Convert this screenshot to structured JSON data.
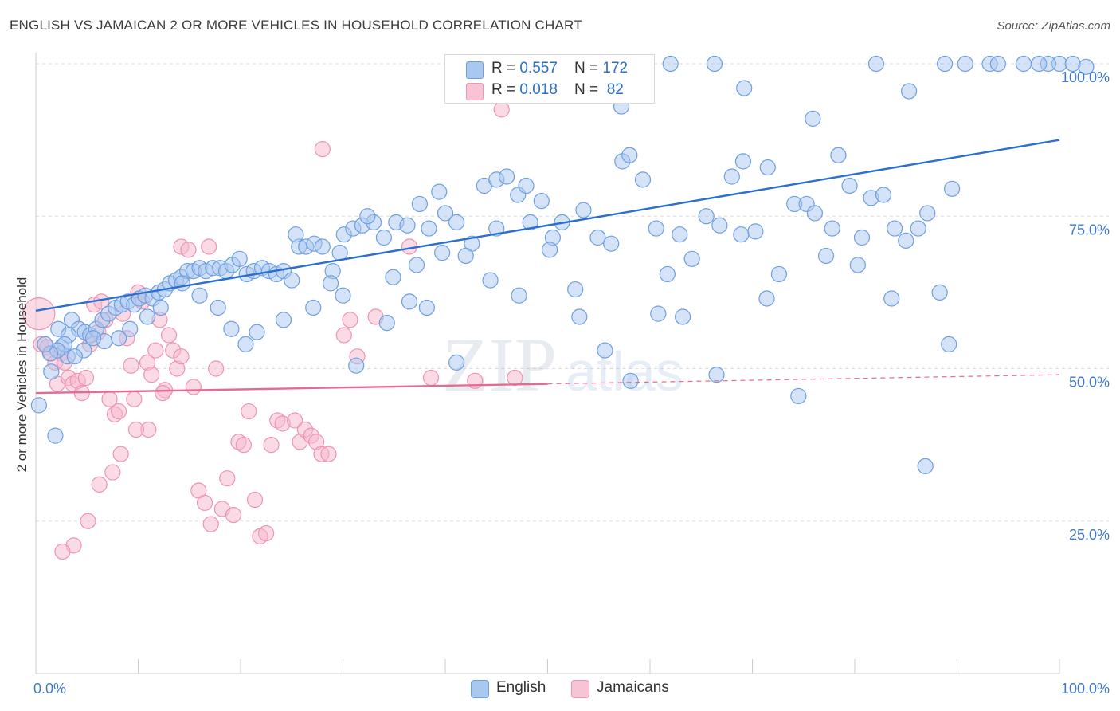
{
  "title": "ENGLISH VS JAMAICAN 2 OR MORE VEHICLES IN HOUSEHOLD CORRELATION CHART",
  "source": "Source: ZipAtlas.com",
  "watermark": {
    "zip": "ZIP",
    "atlas": "atlas"
  },
  "legend": {
    "english": {
      "r_label": "R = ",
      "r_value": "0.557",
      "n_label": "N = ",
      "n_value": "172"
    },
    "jamaicans": {
      "r_label": "R = ",
      "r_value": "0.018",
      "n_label": "N = ",
      "n_value": " 82"
    }
  },
  "bottom_legend": {
    "english": "English",
    "jamaicans": "Jamaicans"
  },
  "colors": {
    "english_fill": "#a9c8f0",
    "english_stroke": "#6f9fe0",
    "english_line": "#2b6fce",
    "jamaican_fill": "#f6b8cc",
    "jamaican_stroke": "#ee93b2",
    "jamaican_line": "#e56b95",
    "tick_label": "#3f78c8",
    "grid": "#dddddd"
  },
  "chart_data": {
    "type": "scatter",
    "title": "ENGLISH VS JAMAICAN 2 OR MORE VEHICLES IN HOUSEHOLD CORRELATION CHART",
    "xlabel": "",
    "ylabel": "2 or more Vehicles in Household",
    "xlim": [
      0,
      100
    ],
    "ylim": [
      0,
      104
    ],
    "x_tick_labels": [
      {
        "value": 0,
        "label": "0.0%"
      },
      {
        "value": 100,
        "label": "100.0%"
      }
    ],
    "y_tick_labels": [
      {
        "value": 25,
        "label": "25.0%"
      },
      {
        "value": 50,
        "label": "50.0%"
      },
      {
        "value": 75,
        "label": "75.0%"
      },
      {
        "value": 100,
        "label": "100.0%"
      }
    ],
    "series": [
      {
        "name": "English",
        "R": 0.557,
        "N": 172,
        "trendline": {
          "x": [
            0,
            100
          ],
          "y": [
            59.5,
            87.5
          ]
        },
        "points": [
          [
            0.3,
            44
          ],
          [
            1.5,
            49.5
          ],
          [
            1.9,
            39
          ],
          [
            2.2,
            56.5
          ],
          [
            2.5,
            53.5
          ],
          [
            3.1,
            52
          ],
          [
            3.5,
            58
          ],
          [
            4.2,
            56.5
          ],
          [
            4.8,
            56
          ],
          [
            5.3,
            55.5
          ],
          [
            5.9,
            56.5
          ],
          [
            6.5,
            58
          ],
          [
            7.1,
            59
          ],
          [
            7.8,
            60
          ],
          [
            8.4,
            60.5
          ],
          [
            9,
            61
          ],
          [
            9.6,
            60.5
          ],
          [
            10.1,
            61.5
          ],
          [
            10.7,
            62
          ],
          [
            11.4,
            61.5
          ],
          [
            12,
            62.5
          ],
          [
            12.6,
            63
          ],
          [
            13.1,
            64
          ],
          [
            13.7,
            64.5
          ],
          [
            14.2,
            65
          ],
          [
            14.8,
            66
          ],
          [
            15.4,
            66
          ],
          [
            16,
            66.5
          ],
          [
            16.6,
            66
          ],
          [
            17.3,
            66.5
          ],
          [
            18,
            66.5
          ],
          [
            18.6,
            66
          ],
          [
            19.2,
            67
          ],
          [
            19.9,
            68
          ],
          [
            20.6,
            65.5
          ],
          [
            21.3,
            66
          ],
          [
            22.1,
            66.5
          ],
          [
            22.8,
            66
          ],
          [
            23.5,
            65.5
          ],
          [
            24.2,
            66
          ],
          [
            25,
            64.5
          ],
          [
            25.7,
            70
          ],
          [
            26.4,
            70
          ],
          [
            27.2,
            70.5
          ],
          [
            28,
            70
          ],
          [
            29,
            66
          ],
          [
            30.1,
            72
          ],
          [
            31,
            73
          ],
          [
            31.9,
            73.5
          ],
          [
            33,
            74
          ],
          [
            34,
            71.5
          ],
          [
            35.2,
            74
          ],
          [
            36.3,
            73.5
          ],
          [
            37.5,
            77
          ],
          [
            38.4,
            73
          ],
          [
            39.4,
            79
          ],
          [
            40,
            75.5
          ],
          [
            41.1,
            74
          ],
          [
            42.6,
            70.5
          ],
          [
            43.8,
            80
          ],
          [
            45,
            81
          ],
          [
            46,
            81.5
          ],
          [
            47.1,
            78.5
          ],
          [
            48.3,
            74
          ],
          [
            49.4,
            77.5
          ],
          [
            50.5,
            71.5
          ],
          [
            51.4,
            74
          ],
          [
            52.7,
            63
          ],
          [
            53.5,
            76
          ],
          [
            54.9,
            71.5
          ],
          [
            56.2,
            70.5
          ],
          [
            57.3,
            84
          ],
          [
            58,
            85
          ],
          [
            59.3,
            81
          ],
          [
            60.6,
            73
          ],
          [
            61.7,
            65.5
          ],
          [
            62.9,
            72
          ],
          [
            64.1,
            68
          ],
          [
            65.5,
            75
          ],
          [
            66.8,
            73.5
          ],
          [
            68,
            81.5
          ],
          [
            69.1,
            84
          ],
          [
            70.3,
            72.5
          ],
          [
            71.5,
            83
          ],
          [
            72.6,
            65.5
          ],
          [
            74.1,
            77
          ],
          [
            75.3,
            77
          ],
          [
            76.1,
            75.5
          ],
          [
            77.2,
            68.5
          ],
          [
            78.4,
            85
          ],
          [
            79.5,
            80
          ],
          [
            80.7,
            71.5
          ],
          [
            81.6,
            78
          ],
          [
            82.8,
            78.5
          ],
          [
            83.9,
            73
          ],
          [
            85,
            71
          ],
          [
            86.2,
            73
          ],
          [
            87.1,
            75.5
          ],
          [
            88.3,
            62.5
          ],
          [
            89.5,
            79.5
          ],
          [
            90.8,
            100
          ],
          [
            93.2,
            100
          ],
          [
            96.5,
            100
          ],
          [
            100,
            100
          ],
          [
            101.3,
            100
          ],
          [
            102.6,
            99.5
          ],
          [
            98.9,
            100
          ],
          [
            98,
            100
          ],
          [
            94,
            100
          ],
          [
            88.8,
            100
          ],
          [
            85.3,
            95.5
          ],
          [
            82.1,
            100
          ],
          [
            75.9,
            91
          ],
          [
            69.2,
            96
          ],
          [
            66.3,
            100
          ],
          [
            62,
            100
          ],
          [
            57.2,
            93
          ],
          [
            53.9,
            100
          ],
          [
            47.9,
            80
          ],
          [
            45,
            73
          ],
          [
            41.1,
            51
          ],
          [
            38.2,
            60
          ],
          [
            36.5,
            61
          ],
          [
            34.3,
            57.5
          ],
          [
            31.3,
            50.5
          ],
          [
            30,
            62
          ],
          [
            28.8,
            64
          ],
          [
            27.1,
            60
          ],
          [
            24.2,
            58
          ],
          [
            21.6,
            56
          ],
          [
            20.5,
            54
          ],
          [
            19.1,
            56.5
          ],
          [
            17.8,
            60
          ],
          [
            16,
            62
          ],
          [
            14.3,
            64
          ],
          [
            12.2,
            60
          ],
          [
            10.9,
            58.5
          ],
          [
            9.2,
            56.5
          ],
          [
            8.1,
            55
          ],
          [
            6.7,
            54.5
          ],
          [
            5.6,
            55
          ],
          [
            4.7,
            53
          ],
          [
            3.8,
            52
          ],
          [
            3.2,
            55.5
          ],
          [
            2.8,
            54
          ],
          [
            2.1,
            53
          ],
          [
            1.4,
            52.5
          ],
          [
            0.9,
            54
          ],
          [
            25.4,
            72
          ],
          [
            29.7,
            69
          ],
          [
            32.4,
            75
          ],
          [
            34.9,
            65
          ],
          [
            37.2,
            67
          ],
          [
            39.7,
            69
          ],
          [
            42,
            68.5
          ],
          [
            44.4,
            64.5
          ],
          [
            47.2,
            62
          ],
          [
            50.2,
            69.5
          ],
          [
            53.1,
            58.5
          ],
          [
            55.6,
            53
          ],
          [
            58.1,
            48
          ],
          [
            60.8,
            59
          ],
          [
            63.2,
            58.5
          ],
          [
            66.5,
            49
          ],
          [
            68.9,
            72
          ],
          [
            71.4,
            61.5
          ],
          [
            74.5,
            45.5
          ],
          [
            77.8,
            73
          ],
          [
            80.3,
            67
          ],
          [
            83.6,
            61.5
          ],
          [
            86.9,
            34
          ],
          [
            89.2,
            54
          ]
        ]
      },
      {
        "name": "Jamaicans",
        "R": 0.018,
        "N": 82,
        "trendline": {
          "x": [
            0,
            50
          ],
          "y": [
            46,
            47.5
          ]
        },
        "trendline_dashed": {
          "x": [
            50,
            100
          ],
          "y": [
            47.5,
            49
          ]
        },
        "points": [
          [
            0.3,
            59
          ],
          [
            0.5,
            54
          ],
          [
            1.1,
            53.5
          ],
          [
            1.5,
            52.5
          ],
          [
            1.9,
            51
          ],
          [
            2.1,
            47.5
          ],
          [
            2.5,
            52.5
          ],
          [
            2.8,
            51
          ],
          [
            3.2,
            48.5
          ],
          [
            3.6,
            47.5
          ],
          [
            4.1,
            48
          ],
          [
            4.5,
            46
          ],
          [
            4.9,
            48.5
          ],
          [
            5.3,
            54
          ],
          [
            5.7,
            60.5
          ],
          [
            6.1,
            56
          ],
          [
            6.4,
            61
          ],
          [
            6.8,
            58
          ],
          [
            7.2,
            45
          ],
          [
            7.7,
            42.5
          ],
          [
            8.1,
            43
          ],
          [
            8.5,
            59
          ],
          [
            8.9,
            55
          ],
          [
            9.3,
            50.5
          ],
          [
            9.6,
            45
          ],
          [
            10,
            62.5
          ],
          [
            10.4,
            61
          ],
          [
            10.9,
            51
          ],
          [
            11.3,
            49
          ],
          [
            11.7,
            53
          ],
          [
            12.1,
            58
          ],
          [
            12.6,
            46.5
          ],
          [
            13,
            55.5
          ],
          [
            13.4,
            53
          ],
          [
            13.8,
            50
          ],
          [
            14.2,
            70
          ],
          [
            14.9,
            69.5
          ],
          [
            15.4,
            47
          ],
          [
            15.9,
            30
          ],
          [
            16.5,
            28
          ],
          [
            17.1,
            24.5
          ],
          [
            17.6,
            50
          ],
          [
            18.2,
            27
          ],
          [
            18.7,
            32
          ],
          [
            19.3,
            26
          ],
          [
            19.8,
            38
          ],
          [
            20.3,
            37.5
          ],
          [
            20.8,
            43
          ],
          [
            21.4,
            28.5
          ],
          [
            21.9,
            22.5
          ],
          [
            22.5,
            23
          ],
          [
            23,
            37.5
          ],
          [
            23.6,
            41.5
          ],
          [
            24.1,
            41
          ],
          [
            25.3,
            41.5
          ],
          [
            25.8,
            38
          ],
          [
            26.3,
            40
          ],
          [
            26.9,
            39
          ],
          [
            27.4,
            38
          ],
          [
            27.9,
            36
          ],
          [
            28.6,
            36
          ],
          [
            30.1,
            55.5
          ],
          [
            30.7,
            58
          ],
          [
            31.4,
            52
          ],
          [
            33.2,
            58.5
          ],
          [
            36.5,
            70
          ],
          [
            38.6,
            48.5
          ],
          [
            42.9,
            48
          ],
          [
            46.8,
            48.5
          ],
          [
            45.5,
            92.5
          ],
          [
            28,
            86
          ],
          [
            16.9,
            70
          ],
          [
            14.2,
            52
          ],
          [
            12.4,
            46
          ],
          [
            11,
            40
          ],
          [
            9.8,
            40
          ],
          [
            8.3,
            36
          ],
          [
            7.5,
            33
          ],
          [
            6.2,
            31
          ],
          [
            5.1,
            25
          ],
          [
            3.7,
            21
          ],
          [
            2.6,
            20
          ]
        ]
      }
    ]
  }
}
